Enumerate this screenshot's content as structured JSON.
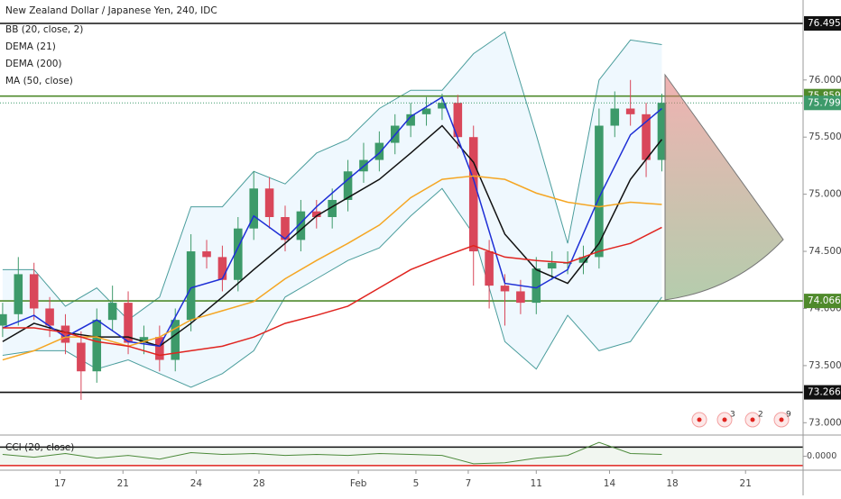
{
  "chart_data": [
    {
      "type": "candlestick",
      "title": "New Zealand Dollar / Japanese Yen, 240, IDC",
      "indicators": [
        "BB (20, close, 2)",
        "DEMA (21)",
        "DEMA (200)",
        "MA (50, close)"
      ],
      "xlim": [
        -0.5,
        153
      ],
      "xticks": [
        {
          "value": 11,
          "label": "17"
        },
        {
          "value": 23,
          "label": "21"
        },
        {
          "value": 37,
          "label": "24"
        },
        {
          "value": 49,
          "label": "28"
        },
        {
          "value": 68,
          "label": "Feb"
        },
        {
          "value": 79,
          "label": "5"
        },
        {
          "value": 89,
          "label": "7"
        },
        {
          "value": 102,
          "label": "11"
        },
        {
          "value": 116,
          "label": "14"
        },
        {
          "value": 128,
          "label": "18"
        },
        {
          "value": 142,
          "label": "21"
        }
      ],
      "ylim": [
        72.9,
        76.7
      ],
      "yticks": [
        {
          "value": 73,
          "label": "73.000"
        },
        {
          "value": 73.5,
          "label": "73.500"
        },
        {
          "value": 74,
          "label": "74.000"
        },
        {
          "value": 74.5,
          "label": "74.500"
        },
        {
          "value": 75,
          "label": "75.000"
        },
        {
          "value": 75.5,
          "label": "75.500"
        },
        {
          "value": 76,
          "label": "76.000"
        }
      ],
      "grid": false,
      "up_color": "#3d9a6a",
      "down_color": "#d9475a",
      "candles": {
        "x": [
          0,
          3,
          6,
          9,
          12,
          15,
          18,
          21,
          24,
          27,
          30,
          33,
          36,
          39,
          42,
          45,
          48,
          51,
          54,
          57,
          60,
          63,
          66,
          69,
          72,
          75,
          78,
          81,
          84,
          87,
          90,
          93,
          96,
          99,
          102,
          105,
          108,
          111,
          114,
          117,
          120,
          123,
          126
        ],
        "open": [
          73.85,
          73.95,
          74.3,
          74.0,
          73.85,
          73.7,
          73.45,
          73.9,
          74.05,
          73.7,
          73.75,
          73.55,
          73.9,
          74.5,
          74.45,
          74.25,
          74.7,
          75.05,
          74.8,
          74.6,
          74.85,
          74.8,
          74.95,
          75.2,
          75.3,
          75.45,
          75.6,
          75.7,
          75.75,
          75.8,
          75.5,
          74.5,
          74.2,
          74.15,
          74.05,
          74.35,
          74.4,
          74.4,
          74.45,
          75.6,
          75.75,
          75.7,
          75.3
        ],
        "high": [
          74.05,
          74.45,
          74.4,
          74.1,
          73.95,
          73.8,
          74.0,
          74.2,
          74.15,
          73.85,
          73.85,
          74.0,
          74.65,
          74.6,
          74.55,
          74.8,
          75.2,
          75.15,
          74.9,
          74.95,
          74.95,
          75.05,
          75.3,
          75.45,
          75.55,
          75.7,
          75.8,
          75.85,
          75.88,
          75.87,
          75.6,
          74.6,
          74.3,
          74.25,
          74.45,
          74.5,
          74.5,
          74.55,
          75.75,
          75.9,
          76.0,
          75.8,
          75.88
        ],
        "low": [
          73.75,
          73.85,
          73.9,
          73.75,
          73.6,
          73.2,
          73.35,
          73.8,
          73.6,
          73.6,
          73.45,
          73.45,
          73.8,
          74.35,
          74.15,
          74.15,
          74.6,
          74.7,
          74.5,
          74.5,
          74.7,
          74.7,
          74.85,
          75.1,
          75.2,
          75.35,
          75.5,
          75.6,
          75.65,
          75.4,
          74.2,
          74.0,
          73.85,
          73.95,
          73.95,
          74.25,
          74.3,
          74.3,
          74.35,
          75.5,
          75.6,
          75.15,
          75.2
        ],
        "close": [
          73.95,
          74.3,
          74.0,
          73.85,
          73.7,
          73.45,
          73.9,
          74.05,
          73.7,
          73.75,
          73.55,
          73.9,
          74.5,
          74.45,
          74.25,
          74.7,
          75.05,
          74.8,
          74.6,
          74.85,
          74.8,
          74.95,
          75.2,
          75.3,
          75.45,
          75.6,
          75.7,
          75.75,
          75.8,
          75.5,
          74.5,
          74.2,
          74.15,
          74.05,
          74.35,
          74.4,
          74.4,
          74.45,
          75.6,
          75.75,
          75.7,
          75.3,
          75.8
        ]
      },
      "line_x": [
        0,
        6,
        12,
        18,
        24,
        30,
        36,
        42,
        48,
        54,
        60,
        66,
        72,
        78,
        84,
        90,
        96,
        102,
        108,
        114,
        120,
        126
      ],
      "bollinger": {
        "color": "#4a9d9c",
        "fill": "#2196f3",
        "upper": [
          74.34,
          74.34,
          74.02,
          74.18,
          73.9,
          74.1,
          74.89,
          74.89,
          75.2,
          75.09,
          75.36,
          75.48,
          75.75,
          75.91,
          75.91,
          76.23,
          76.42,
          75.52,
          74.57,
          76.0,
          76.35,
          76.31
        ],
        "basis": [
          73.71,
          73.87,
          73.79,
          73.75,
          73.75,
          73.67,
          73.87,
          74.1,
          74.34,
          74.57,
          74.81,
          74.97,
          75.13,
          75.36,
          75.6,
          75.28,
          74.65,
          74.34,
          74.22,
          74.57,
          75.13,
          75.48
        ],
        "lower": [
          73.59,
          73.63,
          73.63,
          73.47,
          73.55,
          73.43,
          73.31,
          73.43,
          73.63,
          74.1,
          74.26,
          74.42,
          74.53,
          74.81,
          75.05,
          74.65,
          73.71,
          73.47,
          73.94,
          73.63,
          73.71,
          74.1
        ]
      },
      "series": [
        {
          "color": "#1e2fd6",
          "values": [
            73.83,
            73.94,
            73.75,
            73.9,
            73.71,
            73.67,
            74.18,
            74.26,
            74.81,
            74.61,
            74.89,
            75.13,
            75.36,
            75.68,
            75.85,
            75.13,
            74.22,
            74.18,
            74.34,
            74.97,
            75.52,
            75.75
          ]
        },
        {
          "color": "#f5a623",
          "values": [
            73.55,
            73.63,
            73.75,
            73.75,
            73.67,
            73.75,
            73.9,
            73.98,
            74.06,
            74.26,
            74.42,
            74.57,
            74.73,
            74.97,
            75.13,
            75.16,
            75.13,
            75.01,
            74.93,
            74.89,
            74.93,
            74.91
          ]
        },
        {
          "color": "#e0241f",
          "values": [
            73.83,
            73.83,
            73.79,
            73.71,
            73.67,
            73.59,
            73.63,
            73.67,
            73.75,
            73.87,
            73.94,
            74.02,
            74.18,
            74.34,
            74.45,
            74.55,
            74.45,
            74.42,
            74.4,
            74.5,
            74.57,
            74.71
          ]
        }
      ],
      "hlines": [
        {
          "value": 76.495,
          "color": "#111111"
        },
        {
          "value": 75.859,
          "color": "#4f8a2b"
        },
        {
          "value": 74.066,
          "color": "#4f8a2b"
        },
        {
          "value": 73.266,
          "color": "#111111"
        }
      ],
      "last_price": 75.799,
      "last_color": "#3d9a6a",
      "event_badges": [
        "3",
        "2",
        "9"
      ]
    },
    {
      "type": "line",
      "title": "CCI (20, close)",
      "ylim": [
        -140,
        220
      ],
      "yticks": [
        {
          "value": 0,
          "label": "0.0000"
        }
      ],
      "levels": [
        {
          "value": 100,
          "color": "#111111"
        },
        {
          "value": -100,
          "color": "#e0241f"
        }
      ],
      "x": [
        0,
        6,
        12,
        18,
        24,
        30,
        36,
        42,
        48,
        54,
        60,
        66,
        72,
        78,
        84,
        90,
        96,
        102,
        108,
        114,
        120,
        126
      ],
      "color": "#4c8a3a",
      "values": [
        20,
        -10,
        30,
        -20,
        10,
        -30,
        40,
        20,
        30,
        10,
        20,
        10,
        30,
        20,
        10,
        -80,
        -70,
        -20,
        10,
        150,
        30,
        20
      ]
    }
  ]
}
